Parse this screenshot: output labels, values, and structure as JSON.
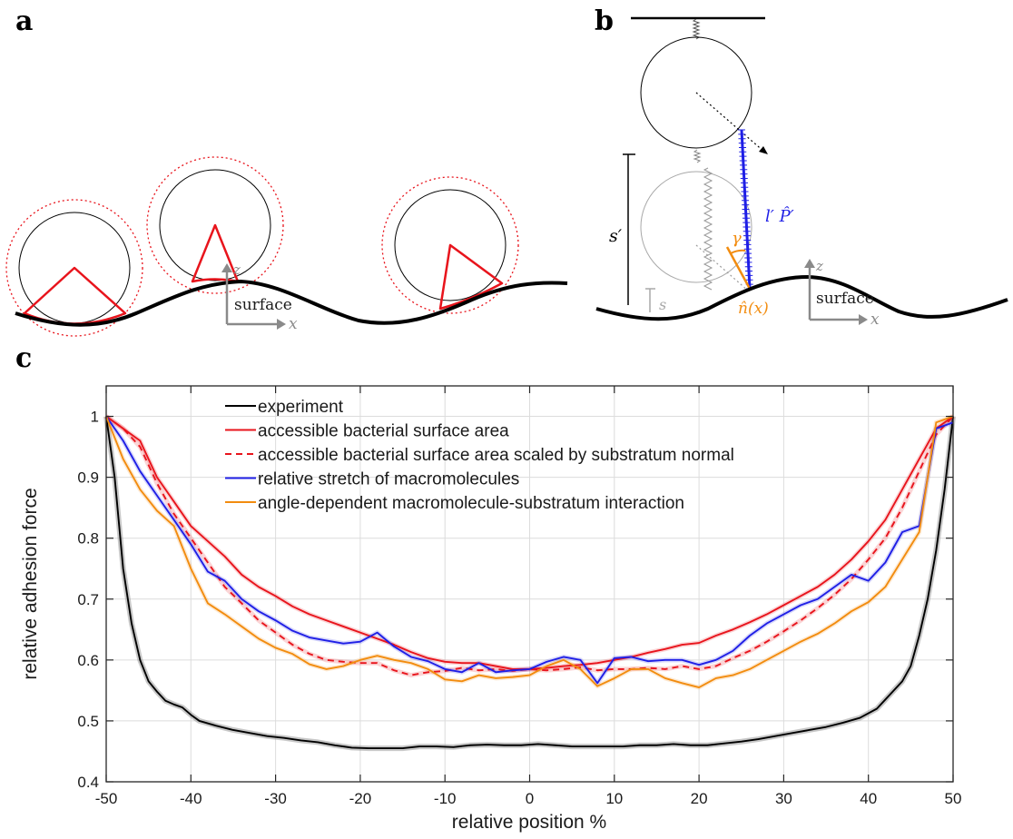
{
  "panels": {
    "a": {
      "letter": "a",
      "surface_label": "surface",
      "axis_x": "x",
      "axis_z": "z"
    },
    "b": {
      "letter": "b",
      "surface_label": "surface",
      "axis_x": "x",
      "axis_z": "z",
      "s_prime": "s′",
      "s": "s",
      "l_p": "l′ P̂′",
      "gamma": "γ",
      "normal": "n̂(x)"
    },
    "c": {
      "letter": "c"
    }
  },
  "colors": {
    "experiment": "#000000",
    "area": "#e8141c",
    "scaled": "#e8141c",
    "stretch": "#1f1fe6",
    "angle": "#f28c0f"
  },
  "chart_data": {
    "type": "line",
    "title": "",
    "xlabel": "relative position %",
    "ylabel": "relative adhesion force",
    "xlim": [
      -50,
      50
    ],
    "ylim": [
      0.4,
      1.05
    ],
    "xticks": [
      -50,
      -40,
      -30,
      -20,
      -10,
      0,
      10,
      20,
      30,
      40,
      50
    ],
    "xtick_labels": [
      "-50",
      "-40",
      "-30",
      "-20",
      "-10",
      "0",
      "10",
      "20",
      "30",
      "40",
      "50"
    ],
    "yticks": [
      0.4,
      0.5,
      0.6,
      0.7,
      0.8,
      0.9,
      1.0
    ],
    "ytick_labels": [
      "0.4",
      "0.5",
      "0.6",
      "0.7",
      "0.8",
      "0.9",
      "1"
    ],
    "grid": true,
    "legend_position": "top",
    "series": [
      {
        "name": "experiment",
        "style": "solid",
        "x": [
          -50,
          -49,
          -48,
          -47,
          -46,
          -45,
          -44,
          -43,
          -42,
          -41,
          -40,
          -39,
          -37,
          -35,
          -33,
          -31,
          -29,
          -27,
          -25,
          -23,
          -21,
          -19,
          -17,
          -15,
          -13,
          -11,
          -9,
          -7,
          -5,
          -3,
          -1,
          1,
          3,
          5,
          7,
          9,
          11,
          13,
          15,
          17,
          19,
          21,
          23,
          25,
          27,
          29,
          31,
          33,
          35,
          37,
          39,
          41,
          42,
          43,
          44,
          45,
          46,
          47,
          48,
          49,
          50
        ],
        "y": [
          1.0,
          0.9,
          0.75,
          0.66,
          0.6,
          0.565,
          0.548,
          0.533,
          0.527,
          0.522,
          0.51,
          0.5,
          0.492,
          0.485,
          0.48,
          0.475,
          0.472,
          0.468,
          0.465,
          0.46,
          0.456,
          0.455,
          0.455,
          0.455,
          0.458,
          0.458,
          0.457,
          0.46,
          0.461,
          0.46,
          0.46,
          0.462,
          0.46,
          0.458,
          0.458,
          0.458,
          0.458,
          0.46,
          0.46,
          0.462,
          0.46,
          0.46,
          0.463,
          0.466,
          0.47,
          0.475,
          0.48,
          0.485,
          0.49,
          0.497,
          0.505,
          0.52,
          0.535,
          0.55,
          0.565,
          0.59,
          0.64,
          0.7,
          0.78,
          0.88,
          1.0
        ]
      },
      {
        "name": "accessible bacterial surface area",
        "style": "solid",
        "x": [
          -50,
          -48,
          -46,
          -44,
          -42,
          -40,
          -38,
          -36,
          -34,
          -32,
          -30,
          -28,
          -26,
          -24,
          -22,
          -20,
          -18,
          -16,
          -14,
          -12,
          -10,
          -8,
          -6,
          -4,
          -2,
          0,
          2,
          4,
          6,
          8,
          10,
          12,
          14,
          16,
          18,
          20,
          22,
          24,
          26,
          28,
          30,
          32,
          34,
          36,
          38,
          40,
          42,
          44,
          46,
          48,
          50
        ],
        "y": [
          1.0,
          0.98,
          0.96,
          0.9,
          0.86,
          0.82,
          0.795,
          0.77,
          0.74,
          0.72,
          0.705,
          0.688,
          0.675,
          0.665,
          0.655,
          0.645,
          0.635,
          0.625,
          0.613,
          0.603,
          0.597,
          0.595,
          0.595,
          0.59,
          0.585,
          0.585,
          0.587,
          0.59,
          0.592,
          0.595,
          0.6,
          0.605,
          0.612,
          0.618,
          0.625,
          0.628,
          0.64,
          0.65,
          0.662,
          0.675,
          0.69,
          0.705,
          0.72,
          0.74,
          0.765,
          0.795,
          0.83,
          0.88,
          0.93,
          0.98,
          1.0
        ]
      },
      {
        "name": "accessible bacterial surface area scaled by substratum normal",
        "style": "dashed",
        "x": [
          -50,
          -48,
          -46,
          -44,
          -42,
          -40,
          -38,
          -36,
          -34,
          -32,
          -30,
          -28,
          -26,
          -24,
          -22,
          -20,
          -18,
          -16,
          -14,
          -12,
          -10,
          -8,
          -6,
          -4,
          -2,
          0,
          2,
          4,
          6,
          8,
          10,
          12,
          14,
          16,
          18,
          20,
          22,
          24,
          26,
          28,
          30,
          32,
          34,
          36,
          38,
          40,
          42,
          44,
          46,
          48,
          50
        ],
        "y": [
          1.0,
          0.98,
          0.95,
          0.89,
          0.84,
          0.8,
          0.76,
          0.72,
          0.693,
          0.665,
          0.645,
          0.625,
          0.61,
          0.6,
          0.597,
          0.595,
          0.595,
          0.583,
          0.575,
          0.58,
          0.582,
          0.587,
          0.583,
          0.585,
          0.582,
          0.585,
          0.583,
          0.585,
          0.588,
          0.583,
          0.585,
          0.585,
          0.587,
          0.585,
          0.59,
          0.585,
          0.59,
          0.603,
          0.615,
          0.63,
          0.647,
          0.665,
          0.685,
          0.707,
          0.733,
          0.765,
          0.8,
          0.85,
          0.91,
          0.97,
          1.0
        ]
      },
      {
        "name": "relative stretch of macromolecules",
        "style": "solid",
        "x": [
          -50,
          -48,
          -46,
          -44,
          -42,
          -40,
          -38,
          -36,
          -34,
          -32,
          -30,
          -28,
          -26,
          -24,
          -22,
          -20,
          -18,
          -16,
          -14,
          -12,
          -10,
          -8,
          -6,
          -4,
          -2,
          0,
          2,
          4,
          6,
          8,
          10,
          12,
          14,
          16,
          18,
          20,
          22,
          24,
          26,
          28,
          30,
          32,
          34,
          36,
          38,
          40,
          42,
          44,
          46,
          48,
          50
        ],
        "y": [
          1.0,
          0.96,
          0.91,
          0.87,
          0.83,
          0.79,
          0.745,
          0.73,
          0.7,
          0.68,
          0.665,
          0.648,
          0.637,
          0.632,
          0.627,
          0.63,
          0.645,
          0.622,
          0.605,
          0.598,
          0.585,
          0.58,
          0.595,
          0.58,
          0.583,
          0.585,
          0.597,
          0.605,
          0.6,
          0.562,
          0.603,
          0.605,
          0.598,
          0.6,
          0.6,
          0.592,
          0.6,
          0.615,
          0.64,
          0.66,
          0.675,
          0.69,
          0.7,
          0.72,
          0.74,
          0.73,
          0.76,
          0.81,
          0.82,
          0.98,
          0.99
        ]
      },
      {
        "name": "angle-dependent macromolecule-substratum interaction",
        "style": "solid",
        "x": [
          -50,
          -48,
          -46,
          -44,
          -42,
          -40,
          -38,
          -36,
          -34,
          -32,
          -30,
          -28,
          -26,
          -24,
          -22,
          -20,
          -18,
          -16,
          -14,
          -12,
          -10,
          -8,
          -6,
          -4,
          -2,
          0,
          2,
          4,
          6,
          8,
          10,
          12,
          14,
          16,
          18,
          20,
          22,
          24,
          26,
          28,
          30,
          32,
          34,
          36,
          38,
          40,
          42,
          44,
          46,
          48,
          50
        ],
        "y": [
          1.0,
          0.93,
          0.88,
          0.845,
          0.82,
          0.75,
          0.693,
          0.675,
          0.655,
          0.635,
          0.62,
          0.61,
          0.593,
          0.585,
          0.59,
          0.6,
          0.607,
          0.6,
          0.595,
          0.585,
          0.568,
          0.565,
          0.575,
          0.57,
          0.572,
          0.575,
          0.59,
          0.6,
          0.585,
          0.557,
          0.57,
          0.585,
          0.585,
          0.57,
          0.562,
          0.555,
          0.57,
          0.575,
          0.585,
          0.6,
          0.615,
          0.63,
          0.643,
          0.66,
          0.68,
          0.695,
          0.72,
          0.765,
          0.81,
          0.99,
          1.0
        ]
      }
    ]
  }
}
